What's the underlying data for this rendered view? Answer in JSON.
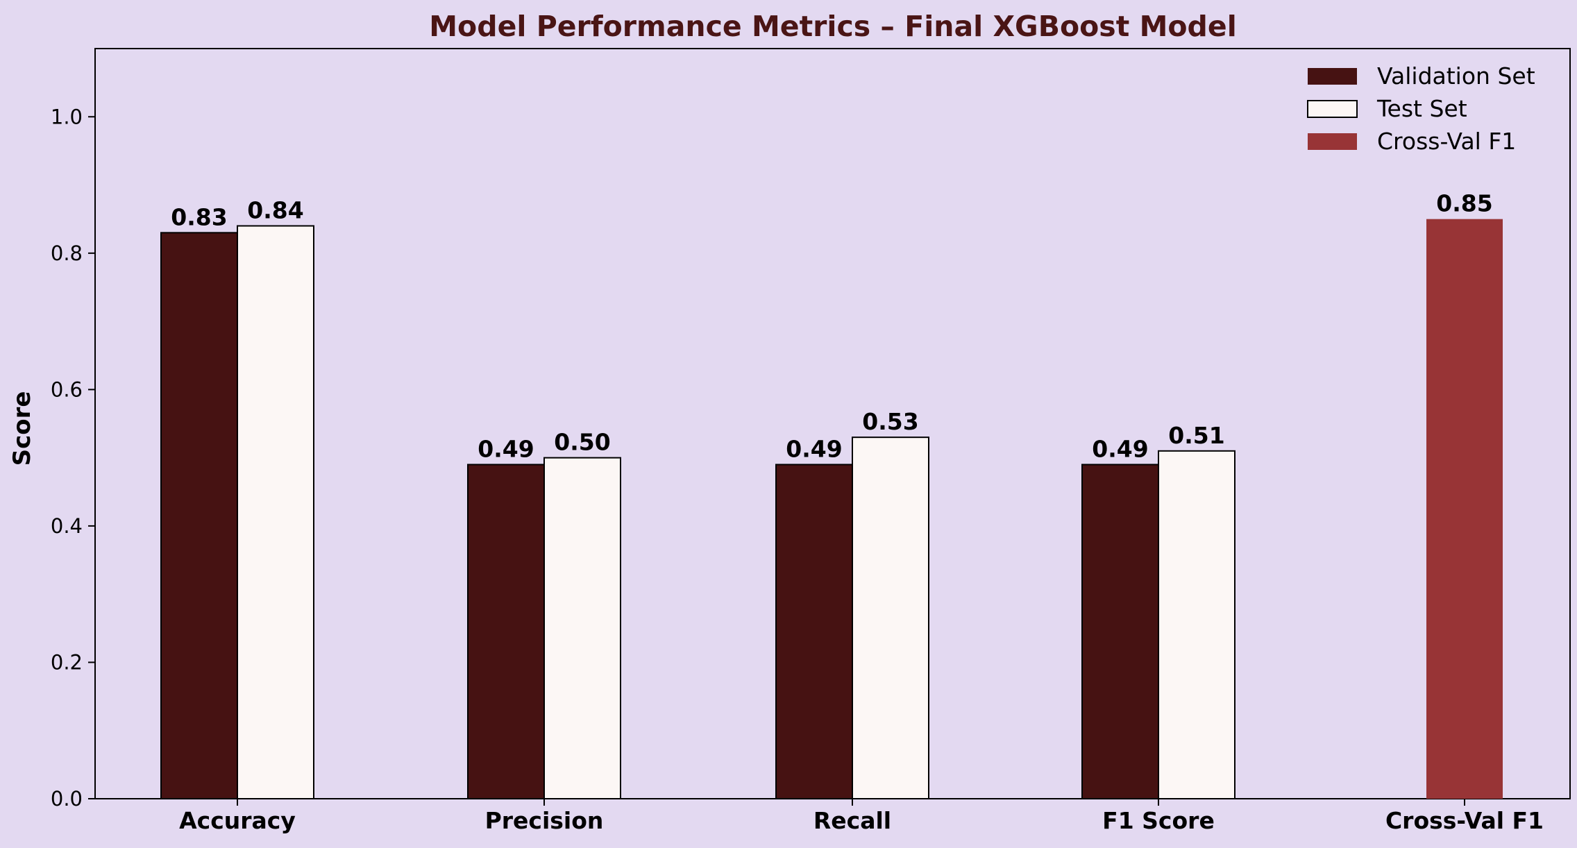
{
  "chart_data": {
    "type": "bar",
    "title": "Model Performance Metrics – Final XGBoost Model",
    "xlabel": "",
    "ylabel": "Score",
    "ylim": [
      0,
      1.1
    ],
    "yticks": [
      0.0,
      0.2,
      0.4,
      0.6,
      0.8,
      1.0
    ],
    "ytick_labels": [
      "0.0",
      "0.2",
      "0.4",
      "0.6",
      "0.8",
      "1.0"
    ],
    "categories": [
      "Accuracy",
      "Precision",
      "Recall",
      "F1 Score",
      "Cross-Val F1"
    ],
    "series": [
      {
        "name": "Validation Set",
        "color": "#461212",
        "values": [
          0.83,
          0.49,
          0.49,
          0.49,
          null
        ],
        "labels": [
          "0.83",
          "0.49",
          "0.49",
          "0.49",
          null
        ]
      },
      {
        "name": "Test Set",
        "color": "#fcf7f5",
        "values": [
          0.84,
          0.5,
          0.53,
          0.51,
          null
        ],
        "labels": [
          "0.84",
          "0.50",
          "0.53",
          "0.51",
          null
        ]
      },
      {
        "name": "Cross-Val F1",
        "color": "#983436",
        "values": [
          null,
          null,
          null,
          null,
          0.85
        ],
        "labels": [
          null,
          null,
          null,
          null,
          "0.85"
        ]
      }
    ],
    "legend_position": "top-right",
    "grid": false,
    "colors": {
      "background": "#e3d9f1",
      "title": "#4a1515",
      "axis": "#000000"
    }
  }
}
